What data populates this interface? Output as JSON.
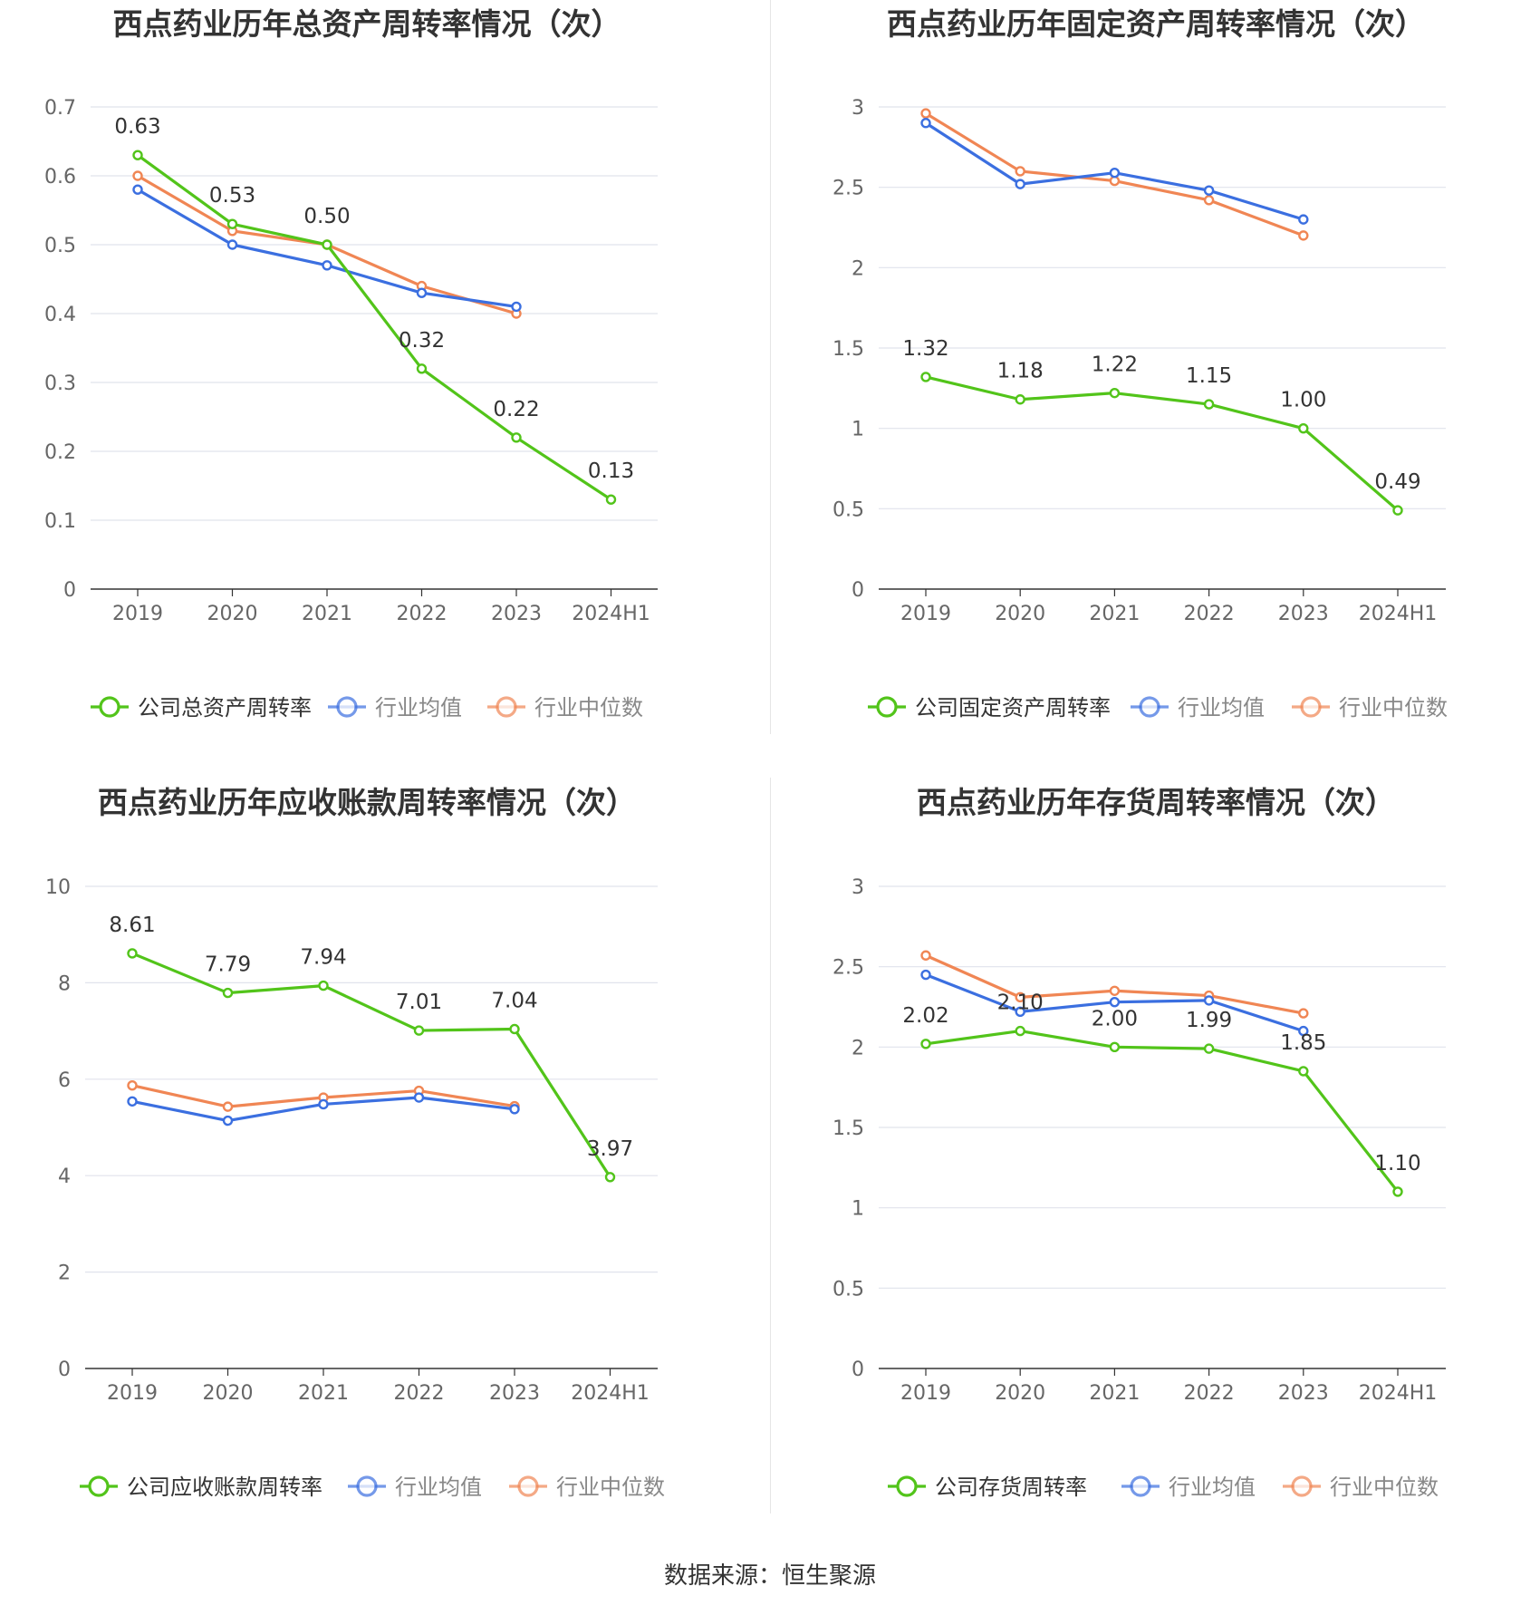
{
  "colors": {
    "company": "#52c41a",
    "average": "#3b6fe0",
    "median": "#f08654",
    "grid": "#e0e3ec",
    "axis": "#333333",
    "tick": "#666666"
  },
  "footer": {
    "source": "数据来源：恒生聚源"
  },
  "chart_data": [
    {
      "type": "line",
      "title": "西点药业历年总资产周转率情况（次）",
      "categories": [
        "2019",
        "2020",
        "2021",
        "2022",
        "2023",
        "2024H1"
      ],
      "ylim": [
        0,
        0.7
      ],
      "yticks": [
        0,
        0.1,
        0.2,
        0.3,
        0.4,
        0.5,
        0.6,
        0.7
      ],
      "ytick_labels": [
        "0",
        "0.1",
        "0.2",
        "0.3",
        "0.4",
        "0.5",
        "0.6",
        "0.7"
      ],
      "grid": true,
      "legend_position": "bottom",
      "series": [
        {
          "name": "公司总资产周转率",
          "role": "company",
          "values": [
            0.63,
            0.53,
            0.5,
            0.32,
            0.22,
            0.13
          ],
          "labels": [
            "0.63",
            "0.53",
            "0.50",
            "0.32",
            "0.22",
            "0.13"
          ]
        },
        {
          "name": "行业均值",
          "role": "average",
          "values": [
            0.58,
            0.5,
            0.47,
            0.43,
            0.41,
            null
          ]
        },
        {
          "name": "行业中位数",
          "role": "median",
          "values": [
            0.6,
            0.52,
            0.5,
            0.44,
            0.4,
            null
          ]
        }
      ]
    },
    {
      "type": "line",
      "title": "西点药业历年固定资产周转率情况（次）",
      "categories": [
        "2019",
        "2020",
        "2021",
        "2022",
        "2023",
        "2024H1"
      ],
      "ylim": [
        0,
        3
      ],
      "yticks": [
        0,
        0.5,
        1,
        1.5,
        2,
        2.5,
        3
      ],
      "ytick_labels": [
        "0",
        "0.5",
        "1",
        "1.5",
        "2",
        "2.5",
        "3"
      ],
      "grid": true,
      "legend_position": "bottom",
      "series": [
        {
          "name": "公司固定资产周转率",
          "role": "company",
          "values": [
            1.32,
            1.18,
            1.22,
            1.15,
            1.0,
            0.49
          ],
          "labels": [
            "1.32",
            "1.18",
            "1.22",
            "1.15",
            "1.00",
            "0.49"
          ]
        },
        {
          "name": "行业均值",
          "role": "average",
          "values": [
            2.9,
            2.52,
            2.59,
            2.48,
            2.3,
            null
          ]
        },
        {
          "name": "行业中位数",
          "role": "median",
          "values": [
            2.96,
            2.6,
            2.54,
            2.42,
            2.2,
            null
          ]
        }
      ]
    },
    {
      "type": "line",
      "title": "西点药业历年应收账款周转率情况（次）",
      "categories": [
        "2019",
        "2020",
        "2021",
        "2022",
        "2023",
        "2024H1"
      ],
      "ylim": [
        0,
        10
      ],
      "yticks": [
        0,
        2,
        4,
        6,
        8,
        10
      ],
      "ytick_labels": [
        "0",
        "2",
        "4",
        "6",
        "8",
        "10"
      ],
      "grid": true,
      "legend_position": "bottom",
      "series": [
        {
          "name": "公司应收账款周转率",
          "role": "company",
          "values": [
            8.61,
            7.79,
            7.94,
            7.01,
            7.04,
            3.97
          ],
          "labels": [
            "8.61",
            "7.79",
            "7.94",
            "7.01",
            "7.04",
            "3.97"
          ]
        },
        {
          "name": "行业均值",
          "role": "average",
          "values": [
            5.54,
            5.14,
            5.48,
            5.62,
            5.38,
            null
          ]
        },
        {
          "name": "行业中位数",
          "role": "median",
          "values": [
            5.87,
            5.43,
            5.62,
            5.76,
            5.44,
            null
          ]
        }
      ]
    },
    {
      "type": "line",
      "title": "西点药业历年存货周转率情况（次）",
      "categories": [
        "2019",
        "2020",
        "2021",
        "2022",
        "2023",
        "2024H1"
      ],
      "ylim": [
        0,
        3
      ],
      "yticks": [
        0,
        0.5,
        1,
        1.5,
        2,
        2.5,
        3
      ],
      "ytick_labels": [
        "0",
        "0.5",
        "1",
        "1.5",
        "2",
        "2.5",
        "3"
      ],
      "grid": true,
      "legend_position": "bottom",
      "series": [
        {
          "name": "公司存货周转率",
          "role": "company",
          "values": [
            2.02,
            2.1,
            2.0,
            1.99,
            1.85,
            1.1
          ],
          "labels": [
            "2.02",
            "2.10",
            "2.00",
            "1.99",
            "1.85",
            "1.10"
          ]
        },
        {
          "name": "行业均值",
          "role": "average",
          "values": [
            2.45,
            2.22,
            2.28,
            2.29,
            2.1,
            null
          ]
        },
        {
          "name": "行业中位数",
          "role": "median",
          "values": [
            2.57,
            2.31,
            2.35,
            2.32,
            2.21,
            null
          ]
        }
      ]
    }
  ]
}
